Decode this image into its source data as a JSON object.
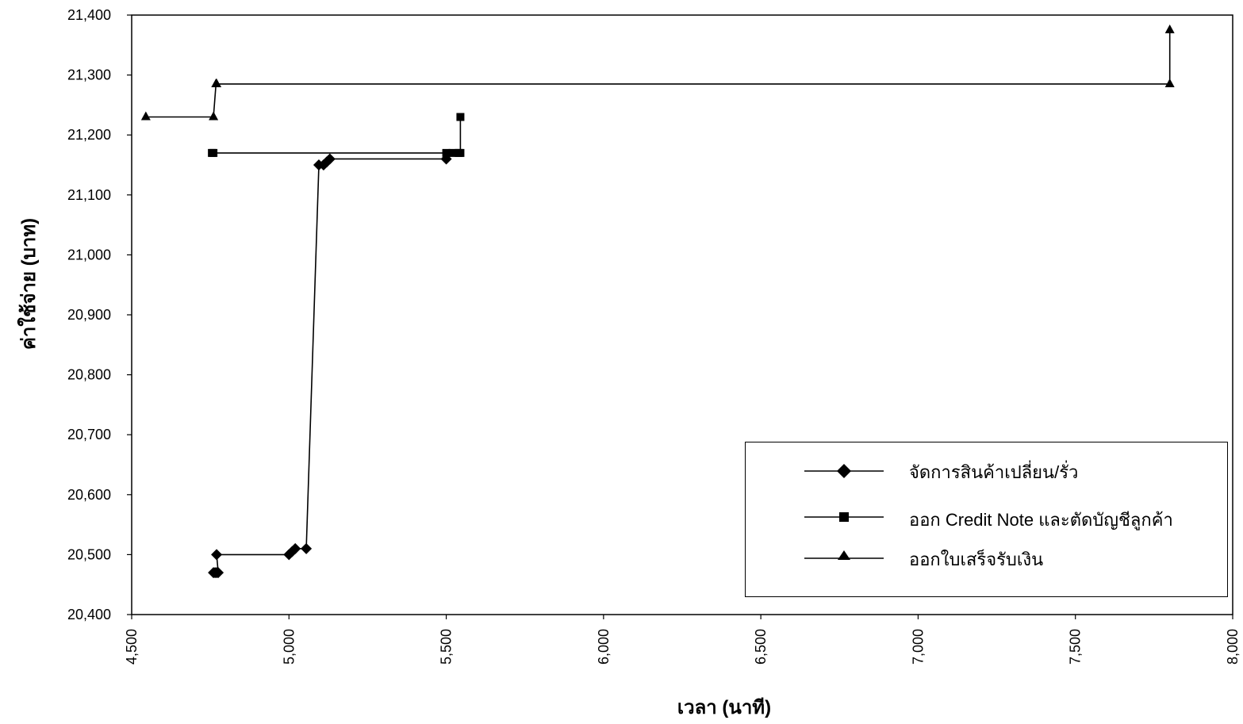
{
  "chart_data": {
    "type": "line",
    "xlabel": "เวลา (นาที)",
    "ylabel": "ค่าใช้จ่าย (บาท)",
    "xlim": [
      4500,
      8000
    ],
    "ylim": [
      20400,
      21400
    ],
    "x_ticks": [
      "4,500",
      "5,000",
      "5,500",
      "6,000",
      "6,500",
      "7,000",
      "7,500",
      "8,000"
    ],
    "y_ticks": [
      "20,400",
      "20,500",
      "20,600",
      "20,700",
      "20,800",
      "20,900",
      "21,000",
      "21,100",
      "21,200",
      "21,300",
      "21,400"
    ],
    "grid": false,
    "legend_position": "bottom-right",
    "series": [
      {
        "name": "จัดการสินค้าเปลี่ยน/รั่ว",
        "marker": "diamond",
        "points": [
          [
            4760,
            20470
          ],
          [
            4765,
            20470
          ],
          [
            4770,
            20470
          ],
          [
            4775,
            20470
          ],
          [
            4770,
            20500
          ],
          [
            5000,
            20500
          ],
          [
            5010,
            20505
          ],
          [
            5020,
            20510
          ],
          [
            5055,
            20510
          ],
          [
            5095,
            21150
          ],
          [
            5110,
            21150
          ],
          [
            5120,
            21155
          ],
          [
            5130,
            21160
          ],
          [
            5500,
            21160
          ]
        ]
      },
      {
        "name": "ออก Credit Note และตัดบัญชีลูกค้า",
        "marker": "square",
        "points": [
          [
            4755,
            21170
          ],
          [
            4760,
            21170
          ],
          [
            5500,
            21170
          ],
          [
            5520,
            21170
          ],
          [
            5540,
            21170
          ],
          [
            5545,
            21170
          ],
          [
            5545,
            21230
          ]
        ]
      },
      {
        "name": "ออกใบเสร็จรับเงิน",
        "marker": "triangle",
        "points": [
          [
            4545,
            21230
          ],
          [
            4760,
            21230
          ],
          [
            4768,
            21285
          ],
          [
            4770,
            21285
          ],
          [
            7800,
            21285
          ],
          [
            7800,
            21375
          ]
        ]
      }
    ]
  }
}
